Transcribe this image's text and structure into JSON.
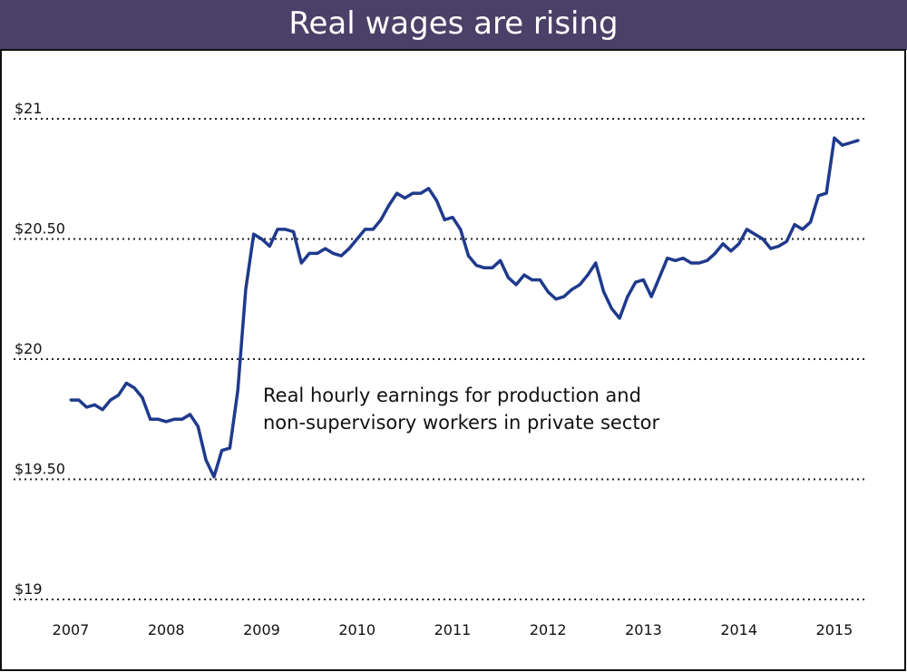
{
  "colors": {
    "title_bar": "#4a4068",
    "title_text": "#ffffff",
    "line": "#1f3a8c",
    "grid": "#222222",
    "border": "#111111"
  },
  "chart_data": {
    "type": "line",
    "title": "Real wages are rising",
    "annotation": [
      "Real hourly earnings for production and",
      "non-supervisory workers in private sector"
    ],
    "xlabel": "",
    "ylabel": "",
    "ylim": [
      19,
      21
    ],
    "y_ticks": [
      {
        "value": 21,
        "label": "$21"
      },
      {
        "value": 20.5,
        "label": "$20.50"
      },
      {
        "value": 20,
        "label": "$20"
      },
      {
        "value": 19.5,
        "label": "$19.50"
      },
      {
        "value": 19,
        "label": "$19"
      }
    ],
    "x_ticks": [
      "2007",
      "2008",
      "2009",
      "2010",
      "2011",
      "2012",
      "2013",
      "2014",
      "2015"
    ],
    "x_start": "2007-01",
    "x_frequency": "monthly",
    "grid": "horizontal dotted",
    "legend": "none",
    "values": [
      19.83,
      19.83,
      19.8,
      19.81,
      19.79,
      19.83,
      19.85,
      19.9,
      19.88,
      19.84,
      19.75,
      19.75,
      19.74,
      19.75,
      19.75,
      19.77,
      19.72,
      19.58,
      19.51,
      19.62,
      19.63,
      19.87,
      20.29,
      20.52,
      20.5,
      20.47,
      20.54,
      20.54,
      20.53,
      20.4,
      20.44,
      20.44,
      20.46,
      20.44,
      20.43,
      20.46,
      20.5,
      20.54,
      20.54,
      20.58,
      20.64,
      20.69,
      20.67,
      20.69,
      20.69,
      20.71,
      20.66,
      20.58,
      20.59,
      20.54,
      20.43,
      20.39,
      20.38,
      20.38,
      20.41,
      20.34,
      20.31,
      20.35,
      20.33,
      20.33,
      20.28,
      20.25,
      20.26,
      20.29,
      20.31,
      20.35,
      20.4,
      20.28,
      20.21,
      20.17,
      20.26,
      20.32,
      20.33,
      20.26,
      20.34,
      20.42,
      20.41,
      20.42,
      20.4,
      20.4,
      20.41,
      20.44,
      20.48,
      20.45,
      20.48,
      20.54,
      20.52,
      20.5,
      20.46,
      20.47,
      20.49,
      20.56,
      20.54,
      20.57,
      20.68,
      20.69,
      20.92,
      20.89,
      20.9,
      20.91
    ]
  }
}
